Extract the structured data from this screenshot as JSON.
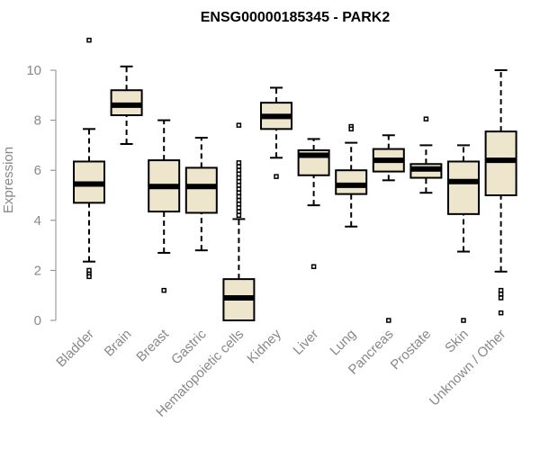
{
  "chart_data": {
    "type": "boxplot",
    "title": "ENSG00000185345 - PARK2",
    "ylabel": "Expression",
    "xlabel": "",
    "ylim": [
      0,
      10.5
    ],
    "yticks": [
      0,
      2,
      4,
      6,
      8,
      10
    ],
    "colors": {
      "box_fill": "#ede5cc",
      "stroke": "#000000",
      "axis": "#888888"
    },
    "categories": [
      "Bladder",
      "Brain",
      "Breast",
      "Gastric",
      "Hematopoietic cells",
      "Kidney",
      "Liver",
      "Lung",
      "Pancreas",
      "Prostate",
      "Skin",
      "Unknown / Other"
    ],
    "boxes": [
      {
        "label": "Bladder",
        "whisker_low": 2.35,
        "q1": 4.7,
        "median": 5.45,
        "q3": 6.35,
        "whisker_high": 7.65,
        "outliers": [
          11.2,
          2.0,
          1.85,
          1.75
        ]
      },
      {
        "label": "Brain",
        "whisker_low": 7.05,
        "q1": 8.2,
        "median": 8.6,
        "q3": 9.2,
        "whisker_high": 10.15,
        "outliers": []
      },
      {
        "label": "Breast",
        "whisker_low": 2.7,
        "q1": 4.35,
        "median": 5.35,
        "q3": 6.4,
        "whisker_high": 8.0,
        "outliers": [
          1.2
        ]
      },
      {
        "label": "Gastric",
        "whisker_low": 2.8,
        "q1": 4.3,
        "median": 5.35,
        "q3": 6.1,
        "whisker_high": 7.3,
        "outliers": []
      },
      {
        "label": "Hematopoietic cells",
        "whisker_low": 0.0,
        "q1": 0.0,
        "median": 0.9,
        "q3": 1.65,
        "whisker_high": 4.05,
        "outliers": [
          4.2,
          4.35,
          4.5,
          4.65,
          4.8,
          4.95,
          5.1,
          5.25,
          5.4,
          5.55,
          5.7,
          5.85,
          6.0,
          6.15,
          6.3,
          7.8
        ]
      },
      {
        "label": "Kidney",
        "whisker_low": 6.5,
        "q1": 7.65,
        "median": 8.15,
        "q3": 8.7,
        "whisker_high": 9.3,
        "outliers": [
          5.75
        ]
      },
      {
        "label": "Liver",
        "whisker_low": 4.6,
        "q1": 5.8,
        "median": 6.6,
        "q3": 6.8,
        "whisker_high": 7.25,
        "outliers": [
          2.15
        ]
      },
      {
        "label": "Lung",
        "whisker_low": 3.75,
        "q1": 5.05,
        "median": 5.4,
        "q3": 6.0,
        "whisker_high": 7.1,
        "outliers": [
          7.75,
          7.65
        ]
      },
      {
        "label": "Pancreas",
        "whisker_low": 5.6,
        "q1": 5.95,
        "median": 6.4,
        "q3": 6.85,
        "whisker_high": 7.4,
        "outliers": [
          0.0
        ]
      },
      {
        "label": "Prostate",
        "whisker_low": 5.1,
        "q1": 5.7,
        "median": 6.05,
        "q3": 6.25,
        "whisker_high": 7.0,
        "outliers": [
          8.05
        ]
      },
      {
        "label": "Skin",
        "whisker_low": 2.75,
        "q1": 4.25,
        "median": 5.55,
        "q3": 6.35,
        "whisker_high": 7.0,
        "outliers": [
          0.0
        ]
      },
      {
        "label": "Unknown / Other",
        "whisker_low": 1.95,
        "q1": 5.0,
        "median": 6.4,
        "q3": 7.55,
        "whisker_high": 10.0,
        "outliers": [
          1.2,
          1.05,
          0.9,
          0.3
        ]
      }
    ]
  }
}
